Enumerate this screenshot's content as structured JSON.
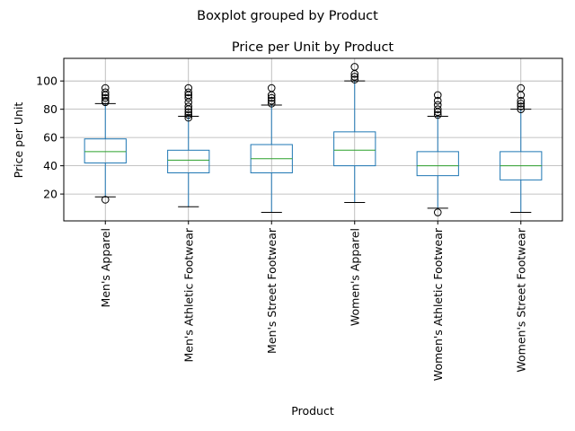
{
  "chart_data": {
    "type": "box",
    "suptitle": "Boxplot grouped by Product",
    "title": "Price per Unit by Product",
    "xlabel": "Product",
    "ylabel": "Price per Unit",
    "ylim": [
      1,
      116
    ],
    "yticks": [
      20,
      40,
      60,
      80,
      100
    ],
    "grid": true,
    "categories": [
      "Men's Apparel",
      "Men's Athletic Footwear",
      "Men's Street Footwear",
      "Women's Apparel",
      "Women's Athletic Footwear",
      "Women's Street Footwear"
    ],
    "boxes": [
      {
        "whislo": 18,
        "q1": 42,
        "med": 50,
        "q3": 59,
        "whishi": 84,
        "fliers": [
          16,
          85,
          86,
          88,
          90,
          92,
          95
        ]
      },
      {
        "whislo": 11,
        "q1": 35,
        "med": 44,
        "q3": 51,
        "whishi": 75,
        "fliers": [
          74,
          76,
          78,
          80,
          82,
          85,
          88,
          90,
          92,
          95
        ]
      },
      {
        "whislo": 7,
        "q1": 35,
        "med": 45,
        "q3": 55,
        "whishi": 83,
        "fliers": [
          84,
          86,
          88,
          90,
          95
        ]
      },
      {
        "whislo": 14,
        "q1": 40,
        "med": 51,
        "q3": 64,
        "whishi": 100,
        "fliers": [
          101,
          103,
          105,
          110
        ]
      },
      {
        "whislo": 10,
        "q1": 33,
        "med": 40,
        "q3": 50,
        "whishi": 75,
        "fliers": [
          7,
          76,
          78,
          80,
          83,
          86,
          90
        ]
      },
      {
        "whislo": 7,
        "q1": 30,
        "med": 40,
        "q3": 50,
        "whishi": 80,
        "fliers": [
          80,
          82,
          84,
          86,
          90,
          95
        ]
      }
    ],
    "colors": {
      "box": "#1f77b4",
      "median": "#2ca02c",
      "grid": "#b0b0b0",
      "axis": "#000000"
    }
  }
}
